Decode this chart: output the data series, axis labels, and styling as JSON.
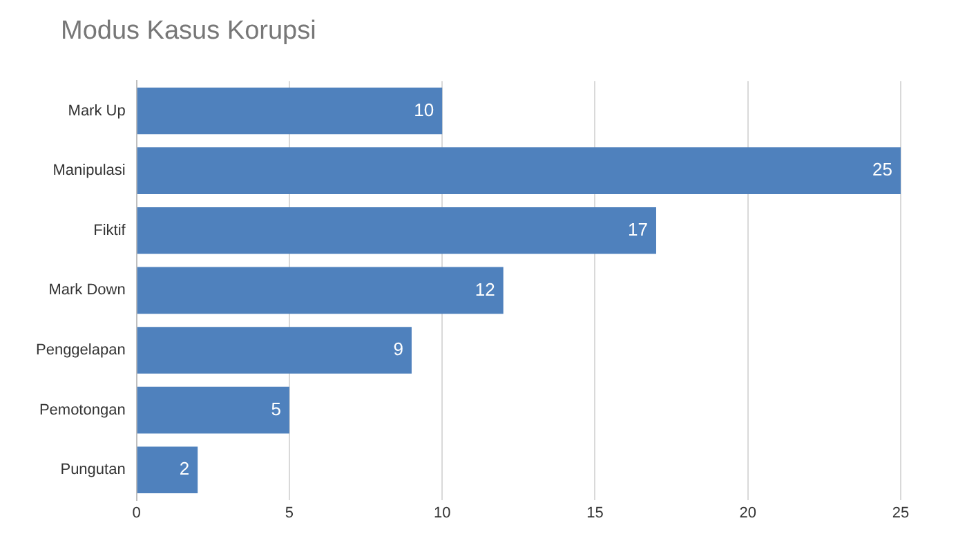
{
  "chart_data": {
    "type": "bar",
    "title": "Modus Kasus Korupsi",
    "orientation": "horizontal",
    "categories": [
      "Mark Up",
      "Manipulasi",
      "Fiktif",
      "Mark Down",
      "Penggelapan",
      "Pemotongan",
      "Pungutan"
    ],
    "values": [
      10,
      25,
      17,
      12,
      9,
      5,
      2
    ],
    "color": "#4f81bd",
    "xlim": [
      0,
      25
    ],
    "xticks": [
      0,
      5,
      10,
      15,
      20,
      25
    ],
    "grid": "x",
    "data_labels": true
  }
}
